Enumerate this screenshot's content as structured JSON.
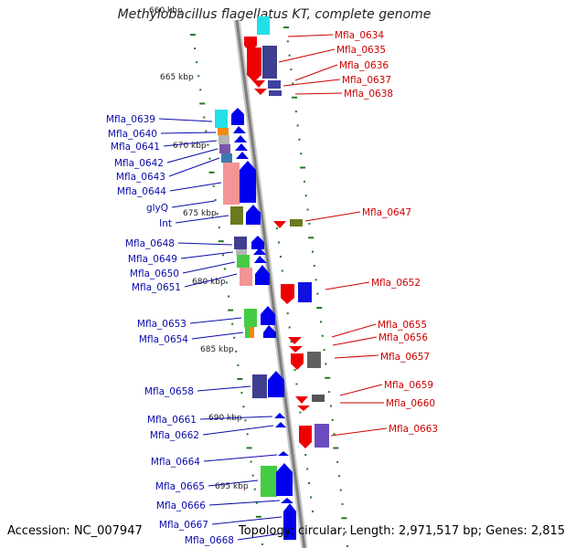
{
  "title": "Methylobacillus flagellatus KT, complete genome",
  "accession": "Accession: NC_007947",
  "topology": "Topology: circular; Length: 2,971,517 bp; Genes: 2,815",
  "kbp_labels": [
    "660 kbp",
    "665 kbp",
    "670 kbp",
    "675 kbp",
    "680 kbp",
    "685 kbp",
    "690 kbp",
    "695 kbp"
  ],
  "left_genes": [
    "Mfla_0639",
    "Mfla_0640",
    "Mfla_0641",
    "Mfla_0642",
    "Mfla_0643",
    "Mfla_0644",
    "glyQ",
    "Int",
    "Mfla_0648",
    "Mfla_0649",
    "Mfla_0650",
    "Mfla_0651",
    "Mfla_0653",
    "Mfla_0654",
    "Mfla_0658",
    "Mfla_0661",
    "Mfla_0662",
    "Mfla_0664",
    "Mfla_0665",
    "Mfla_0666",
    "Mfla_0667",
    "Mfla_0668"
  ],
  "right_genes": [
    "Mfla_0634",
    "Mfla_0635",
    "Mfla_0636",
    "Mfla_0637",
    "Mfla_0638",
    "Mfla_0647",
    "Mfla_0652",
    "Mfla_0655",
    "Mfla_0656",
    "Mfla_0657",
    "Mfla_0659",
    "Mfla_0660",
    "Mfla_0663"
  ],
  "colors": {
    "forward_arrow": "#0000ee",
    "reverse_arrow": "#ee0000",
    "left_label": "#0a0aaa",
    "right_label": "#cc0000",
    "backbone": "#8a8a8a",
    "tick": "#1f7a1f"
  }
}
